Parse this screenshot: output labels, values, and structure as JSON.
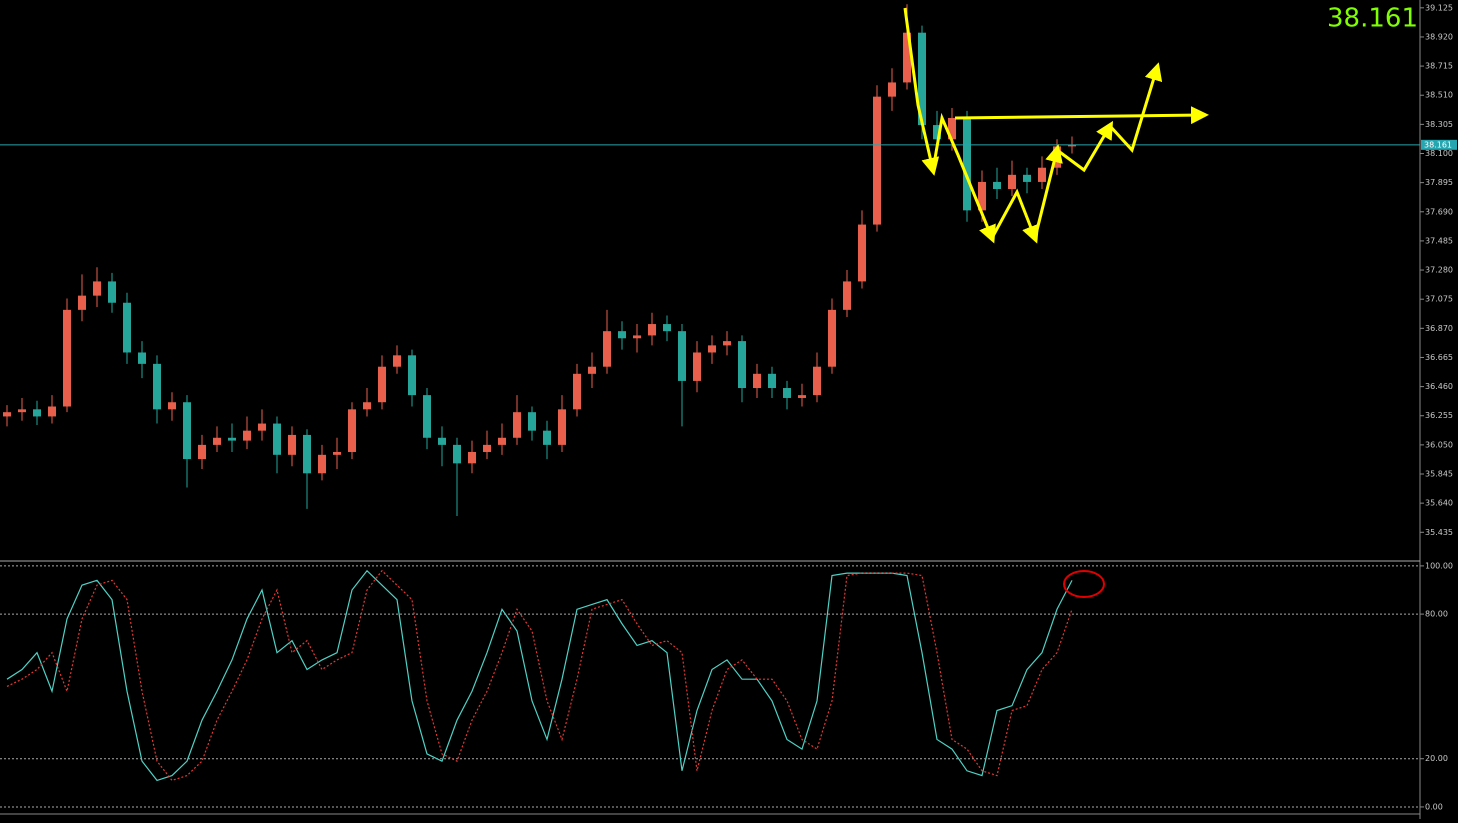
{
  "chart_data": [
    {
      "type": "candlestick",
      "open": [
        36.25,
        36.28,
        36.3,
        36.25,
        36.32,
        37.0,
        37.1,
        37.2,
        37.05,
        36.7,
        36.62,
        36.3,
        36.35,
        35.95,
        36.05,
        36.1,
        36.08,
        36.15,
        36.2,
        35.98,
        36.12,
        35.85,
        35.98,
        36.0,
        36.3,
        36.35,
        36.6,
        36.68,
        36.4,
        36.1,
        36.05,
        35.92,
        36.0,
        36.05,
        36.1,
        36.28,
        36.15,
        36.05,
        36.3,
        36.55,
        36.6,
        36.85,
        36.8,
        36.82,
        36.9,
        36.85,
        36.5,
        36.7,
        36.75,
        36.78,
        36.45,
        36.55,
        36.45,
        36.38,
        36.4,
        36.6,
        37.0,
        37.2,
        37.6,
        38.5,
        38.6,
        38.95,
        38.3,
        38.2,
        38.35,
        37.7,
        37.9,
        37.85,
        37.95,
        37.9,
        38.0,
        38.15
      ],
      "high": [
        36.33,
        36.38,
        36.36,
        36.4,
        37.08,
        37.25,
        37.3,
        37.26,
        37.12,
        36.78,
        36.68,
        36.42,
        36.4,
        36.12,
        36.18,
        36.2,
        36.25,
        36.3,
        36.25,
        36.18,
        36.16,
        36.05,
        36.1,
        36.35,
        36.45,
        36.68,
        36.75,
        36.72,
        36.45,
        36.18,
        36.1,
        36.08,
        36.15,
        36.2,
        36.4,
        36.32,
        36.22,
        36.4,
        36.62,
        36.7,
        37.0,
        36.92,
        36.9,
        36.98,
        36.96,
        36.9,
        36.78,
        36.82,
        36.85,
        36.82,
        36.62,
        36.6,
        36.5,
        36.48,
        36.7,
        37.08,
        37.28,
        37.7,
        38.58,
        38.7,
        39.15,
        39.0,
        38.4,
        38.42,
        38.4,
        37.98,
        38.0,
        38.05,
        38.0,
        38.08,
        38.2,
        38.22
      ],
      "low": [
        36.18,
        36.22,
        36.19,
        36.2,
        36.28,
        36.92,
        37.02,
        36.98,
        36.62,
        36.52,
        36.2,
        36.22,
        35.75,
        35.88,
        36.0,
        36.0,
        36.02,
        36.08,
        35.85,
        35.9,
        35.6,
        35.8,
        35.88,
        35.95,
        36.25,
        36.3,
        36.55,
        36.32,
        36.02,
        35.9,
        35.55,
        35.85,
        35.95,
        35.98,
        36.05,
        36.08,
        35.95,
        36.0,
        36.25,
        36.45,
        36.55,
        36.72,
        36.7,
        36.75,
        36.78,
        36.18,
        36.42,
        36.62,
        36.68,
        36.35,
        36.38,
        36.38,
        36.3,
        36.32,
        36.35,
        36.55,
        36.95,
        37.15,
        37.55,
        38.4,
        38.55,
        38.2,
        38.1,
        38.12,
        37.62,
        37.62,
        37.78,
        37.8,
        37.82,
        37.85,
        37.95,
        38.1
      ],
      "close": [
        36.28,
        36.3,
        36.25,
        36.32,
        37.0,
        37.1,
        37.2,
        37.05,
        36.7,
        36.62,
        36.3,
        36.35,
        35.95,
        36.05,
        36.1,
        36.08,
        36.15,
        36.2,
        35.98,
        36.12,
        35.85,
        35.98,
        36.0,
        36.3,
        36.35,
        36.6,
        36.68,
        36.4,
        36.1,
        36.05,
        35.92,
        36.0,
        36.05,
        36.1,
        36.28,
        36.15,
        36.05,
        36.3,
        36.55,
        36.6,
        36.85,
        36.8,
        36.82,
        36.9,
        36.85,
        36.5,
        36.7,
        36.75,
        36.78,
        36.45,
        36.55,
        36.45,
        36.38,
        36.4,
        36.6,
        37.0,
        37.2,
        37.6,
        38.5,
        38.6,
        38.95,
        38.3,
        38.2,
        38.35,
        37.7,
        37.9,
        37.85,
        37.95,
        37.9,
        38.0,
        38.15,
        38.161
      ],
      "up_color": "#e8604c",
      "down_color": "#26a69a",
      "current_price": 38.161,
      "ylim": [
        35.24,
        39.18
      ],
      "yticks": [
        39.125,
        {
          "value": 38.92,
          "label": "38.920"
        },
        38.715,
        {
          "value": 38.51,
          "label": "38.510"
        },
        38.305,
        {
          "value": 38.1,
          "label": "38.100"
        },
        37.895,
        {
          "value": 37.69,
          "label": "37.690"
        },
        37.485,
        {
          "value": 37.28,
          "label": "37.280"
        },
        37.075,
        {
          "value": 36.87,
          "label": "36.870"
        },
        36.665,
        {
          "value": 36.46,
          "label": "36.460"
        },
        36.255,
        {
          "value": 36.05,
          "label": "36.050"
        },
        35.845,
        {
          "value": 35.64,
          "label": "35.640"
        },
        35.435
      ]
    },
    {
      "type": "line",
      "series": [
        {
          "color": "#4fd1c5",
          "values": [
            53,
            57,
            64,
            48,
            78,
            92,
            94,
            86,
            48,
            19,
            11,
            13,
            19,
            36,
            48,
            61,
            78,
            90,
            64,
            69,
            57,
            61,
            64,
            90,
            98,
            92,
            86,
            44,
            22,
            19,
            36,
            48,
            64,
            82,
            73,
            44,
            28,
            53,
            82,
            84,
            86,
            76,
            67,
            69,
            64,
            15,
            40,
            57,
            61,
            53,
            53,
            44,
            28,
            24,
            44,
            96,
            97,
            97,
            97,
            97,
            96,
            64,
            28,
            24,
            15,
            13,
            40,
            42,
            57,
            64,
            82,
            94
          ]
        },
        {
          "color": "#e53935",
          "values": [
            50,
            53,
            57,
            64,
            48,
            78,
            92,
            94,
            86,
            48,
            19,
            11,
            13,
            19,
            36,
            48,
            61,
            78,
            90,
            64,
            69,
            57,
            61,
            64,
            90,
            98,
            92,
            86,
            44,
            22,
            19,
            36,
            48,
            64,
            82,
            73,
            44,
            28,
            53,
            82,
            84,
            86,
            76,
            67,
            69,
            64,
            15,
            40,
            57,
            61,
            53,
            53,
            44,
            28,
            24,
            44,
            96,
            97,
            97,
            97,
            97,
            96,
            64,
            28,
            24,
            15,
            13,
            40,
            42,
            57,
            64,
            82
          ]
        }
      ],
      "ylim": [
        -2.1,
        101.2
      ],
      "yticks": [
        {
          "value": 100,
          "label": "100.00"
        },
        {
          "value": 80,
          "label": "80.00"
        },
        {
          "value": 20,
          "label": "20.00"
        },
        {
          "value": 0,
          "label": "0.00"
        }
      ]
    }
  ]
}
